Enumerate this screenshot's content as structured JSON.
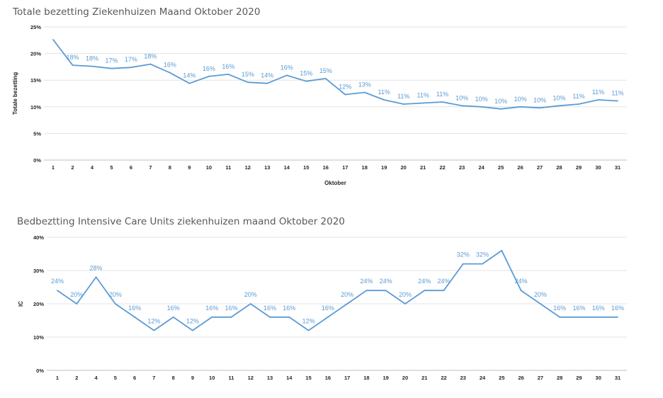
{
  "chart_data": [
    {
      "type": "line",
      "title": "Totale bezetting Ziekenhuizen Maand Oktober 2020",
      "xlabel": "Oktober",
      "ylabel": "Totale bezetting",
      "ylim": [
        0,
        25
      ],
      "yticks": [
        "0%",
        "5%",
        "10%",
        "15%",
        "20%",
        "25%"
      ],
      "grid": true,
      "color": "#5b9bd5",
      "categories": [
        "1",
        "2",
        "4",
        "5",
        "6",
        "7",
        "8",
        "9",
        "10",
        "11",
        "12",
        "13",
        "14",
        "15",
        "16",
        "17",
        "18",
        "19",
        "20",
        "21",
        "22",
        "23",
        "24",
        "25",
        "26",
        "27",
        "28",
        "29",
        "30",
        "31"
      ],
      "values": [
        22.6,
        17.8,
        17.6,
        17.2,
        17.4,
        18.0,
        16.4,
        14.4,
        15.7,
        16.1,
        14.6,
        14.4,
        15.9,
        14.8,
        15.3,
        12.3,
        12.7,
        11.3,
        10.5,
        10.7,
        10.9,
        10.2,
        10.0,
        9.6,
        10.0,
        9.8,
        10.2,
        10.5,
        11.3,
        11.1
      ],
      "data_labels": [
        "",
        "18%",
        "18%",
        "17%",
        "17%",
        "18%",
        "16%",
        "14%",
        "16%",
        "16%",
        "15%",
        "14%",
        "16%",
        "15%",
        "15%",
        "12%",
        "13%",
        "11%",
        "11%",
        "11%",
        "11%",
        "10%",
        "10%",
        "10%",
        "10%",
        "10%",
        "10%",
        "11%",
        "11%",
        "11%"
      ]
    },
    {
      "type": "line",
      "title": "Bedbeztting Intensive Care Units ziekenhuizen maand Oktober 2020",
      "xlabel": "",
      "ylabel": "IC",
      "ylim": [
        0,
        40
      ],
      "yticks": [
        "0%",
        "10%",
        "20%",
        "30%",
        "40%"
      ],
      "grid": true,
      "color": "#5b9bd5",
      "categories": [
        "1",
        "2",
        "4",
        "5",
        "6",
        "7",
        "8",
        "9",
        "10",
        "11",
        "12",
        "13",
        "14",
        "15",
        "16",
        "17",
        "18",
        "19",
        "20",
        "21",
        "22",
        "23",
        "24",
        "25",
        "26",
        "27",
        "28",
        "29",
        "30",
        "31"
      ],
      "values": [
        24,
        20,
        28,
        20,
        16,
        12,
        16,
        12,
        16,
        16,
        20,
        16,
        16,
        12,
        16,
        20,
        24,
        24,
        20,
        24,
        24,
        32,
        32,
        36,
        24,
        20,
        16,
        16,
        16,
        16
      ],
      "data_labels": [
        "24%",
        "20%",
        "28%",
        "20%",
        "16%",
        "12%",
        "16%",
        "12%",
        "16%",
        "16%",
        "20%",
        "16%",
        "16%",
        "12%",
        "16%",
        "20%",
        "24%",
        "24%",
        "20%",
        "24%",
        "24%",
        "32%",
        "32%",
        "",
        "24%",
        "20%",
        "16%",
        "16%",
        "16%",
        "16%"
      ]
    }
  ]
}
